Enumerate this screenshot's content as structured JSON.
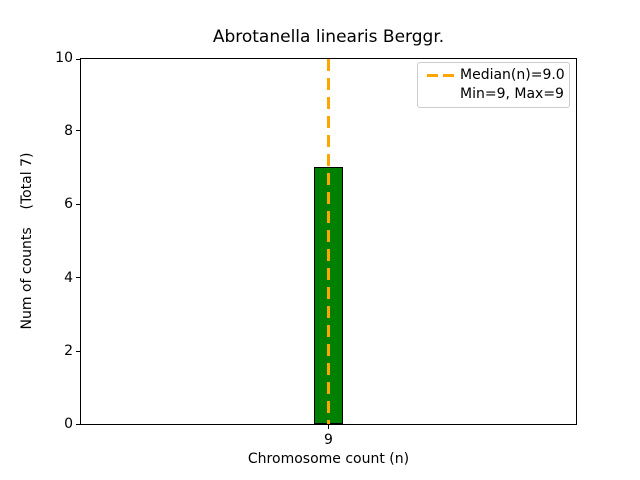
{
  "chart_data": {
    "type": "bar",
    "title": "Abrotanella linearis Berggr.",
    "xlabel": "Chromosome count (n)",
    "ylabel": "Num of counts    (Total 7)",
    "categories": [
      "9"
    ],
    "values": [
      7
    ],
    "total_counts": 7,
    "ylim": [
      0,
      10
    ],
    "yticks": [
      "0",
      "2",
      "4",
      "6",
      "8",
      "10"
    ],
    "xticks": [
      "9"
    ],
    "grid": false,
    "bar_color": "#008000",
    "bar_edge_color": "#000000",
    "median_line": {
      "x": 9.0,
      "color": "#FFA500",
      "style": "dashed"
    },
    "stats": {
      "median": 9.0,
      "min": 9,
      "max": 9
    },
    "legend_position": "upper right",
    "legend": [
      {
        "label": "Median(n)=9.0",
        "marker": "dashed-line",
        "marker_color": "#FFA500"
      },
      {
        "label": "Min=9, Max=9",
        "marker": "none"
      }
    ]
  }
}
